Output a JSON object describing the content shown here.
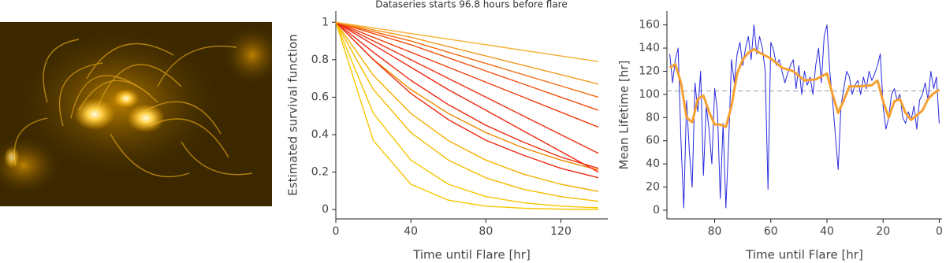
{
  "chart_data": [
    {
      "type": "line",
      "title": "Dataseries starts 96.8 hours before flare",
      "xlabel": "Time until Flare [hr]",
      "ylabel": "Estimated survival function",
      "x": [
        0,
        20,
        40,
        60,
        80,
        100,
        120,
        140
      ],
      "xlim": [
        0,
        145
      ],
      "ylim": [
        -0.05,
        1.06
      ],
      "xticks": [
        0,
        40,
        80,
        120
      ],
      "yticks": [
        0,
        0.2,
        0.4,
        0.6,
        0.8,
        1
      ],
      "series": [
        {
          "color": "#f7c600",
          "values": [
            1,
            0.368,
            0.135,
            0.05,
            0.018,
            0.007,
            0.002,
            0.001
          ]
        },
        {
          "color": "#f7c600",
          "values": [
            1,
            0.513,
            0.264,
            0.135,
            0.069,
            0.036,
            0.018,
            0.009
          ]
        },
        {
          "color": "#f5bb00",
          "values": [
            1,
            0.641,
            0.411,
            0.264,
            0.169,
            0.108,
            0.069,
            0.044
          ]
        },
        {
          "color": "#f5b000",
          "values": [
            1,
            0.717,
            0.513,
            0.368,
            0.264,
            0.189,
            0.135,
            0.097
          ]
        },
        {
          "color": "#f08a00",
          "values": [
            1,
            0.801,
            0.641,
            0.513,
            0.411,
            0.329,
            0.264,
            0.211
          ]
        },
        {
          "color": "#ee2a10",
          "values": [
            1,
            0.8,
            0.62,
            0.48,
            0.37,
            0.29,
            0.22,
            0.17
          ]
        },
        {
          "color": "#ee2a10",
          "values": [
            1,
            0.84,
            0.69,
            0.56,
            0.45,
            0.36,
            0.28,
            0.22
          ]
        },
        {
          "color": "#f02810",
          "values": [
            1,
            0.88,
            0.76,
            0.64,
            0.53,
            0.42,
            0.31,
            0.2
          ]
        },
        {
          "color": "#f03010",
          "values": [
            1,
            0.9,
            0.8,
            0.7,
            0.6,
            0.5,
            0.4,
            0.3
          ]
        },
        {
          "color": "#f04010",
          "values": [
            1,
            0.92,
            0.84,
            0.76,
            0.68,
            0.6,
            0.52,
            0.44
          ]
        },
        {
          "color": "#f25010",
          "values": [
            1,
            0.94,
            0.88,
            0.81,
            0.74,
            0.67,
            0.6,
            0.53
          ]
        },
        {
          "color": "#f46a10",
          "values": [
            1,
            0.95,
            0.9,
            0.84,
            0.78,
            0.72,
            0.66,
            0.6
          ]
        },
        {
          "color": "#f49a20",
          "values": [
            1,
            0.96,
            0.92,
            0.87,
            0.82,
            0.77,
            0.72,
            0.67
          ]
        },
        {
          "color": "#f5b030",
          "values": [
            1,
            0.97,
            0.94,
            0.91,
            0.88,
            0.85,
            0.82,
            0.79
          ]
        }
      ]
    },
    {
      "type": "line",
      "xlabel": "Time until Flare [hr]",
      "ylabel": "Mean Lifetime [hr]",
      "xlim": [
        97,
        -1
      ],
      "ylim": [
        -7.5,
        172
      ],
      "xticks": [
        80,
        60,
        40,
        20,
        0
      ],
      "yticks": [
        0,
        20,
        40,
        60,
        80,
        100,
        120,
        140,
        160
      ],
      "reference_line": 103,
      "series": [
        {
          "color": "#2a2ae0",
          "x": [
            96,
            95,
            94,
            93,
            92,
            91,
            90,
            89,
            88,
            87,
            86,
            85,
            84,
            83,
            82,
            81,
            80,
            79,
            78,
            77,
            76,
            75,
            74,
            73,
            72,
            71,
            70,
            69,
            68,
            67,
            66,
            65,
            64,
            63,
            62,
            61,
            60,
            59,
            58,
            57,
            56,
            55,
            54,
            53,
            52,
            51,
            50,
            49,
            48,
            47,
            46,
            45,
            44,
            43,
            42,
            41,
            40,
            39,
            38,
            37,
            36,
            35,
            34,
            33,
            32,
            31,
            30,
            29,
            28,
            27,
            26,
            25,
            24,
            23,
            22,
            21,
            20,
            19,
            18,
            17,
            16,
            15,
            14,
            13,
            12,
            11,
            10,
            9,
            8,
            7,
            6,
            5,
            4,
            3,
            2,
            1,
            0
          ],
          "values": [
            135,
            110,
            130,
            140,
            60,
            2,
            95,
            50,
            20,
            110,
            85,
            120,
            30,
            90,
            70,
            40,
            105,
            85,
            10,
            75,
            2,
            60,
            130,
            110,
            135,
            145,
            125,
            140,
            150,
            130,
            160,
            135,
            150,
            140,
            120,
            18,
            145,
            138,
            125,
            130,
            120,
            110,
            118,
            125,
            130,
            105,
            125,
            100,
            120,
            108,
            115,
            100,
            125,
            140,
            110,
            150,
            160,
            120,
            95,
            65,
            35,
            90,
            105,
            120,
            115,
            100,
            108,
            112,
            100,
            115,
            105,
            120,
            112,
            118,
            125,
            135,
            90,
            70,
            80,
            100,
            105,
            95,
            100,
            80,
            75,
            85,
            78,
            90,
            70,
            95,
            100,
            110,
            95,
            120,
            105,
            115,
            75
          ]
        },
        {
          "color": "#f5a030",
          "x": [
            96,
            94,
            92,
            90,
            88,
            86,
            84,
            82,
            80,
            78,
            76,
            74,
            72,
            70,
            68,
            66,
            64,
            60,
            56,
            52,
            48,
            44,
            40,
            38,
            36,
            34,
            32,
            28,
            24,
            22,
            20,
            18,
            16,
            14,
            12,
            10,
            8,
            6,
            4,
            2,
            0
          ],
          "values": [
            123,
            126,
            110,
            80,
            76,
            96,
            99,
            85,
            74,
            74,
            72,
            90,
            118,
            130,
            136,
            139,
            136,
            131,
            123,
            120,
            112,
            113,
            118,
            100,
            84,
            95,
            107,
            107,
            108,
            112,
            94,
            80,
            94,
            96,
            84,
            78,
            82,
            86,
            96,
            101,
            104
          ]
        }
      ]
    }
  ]
}
